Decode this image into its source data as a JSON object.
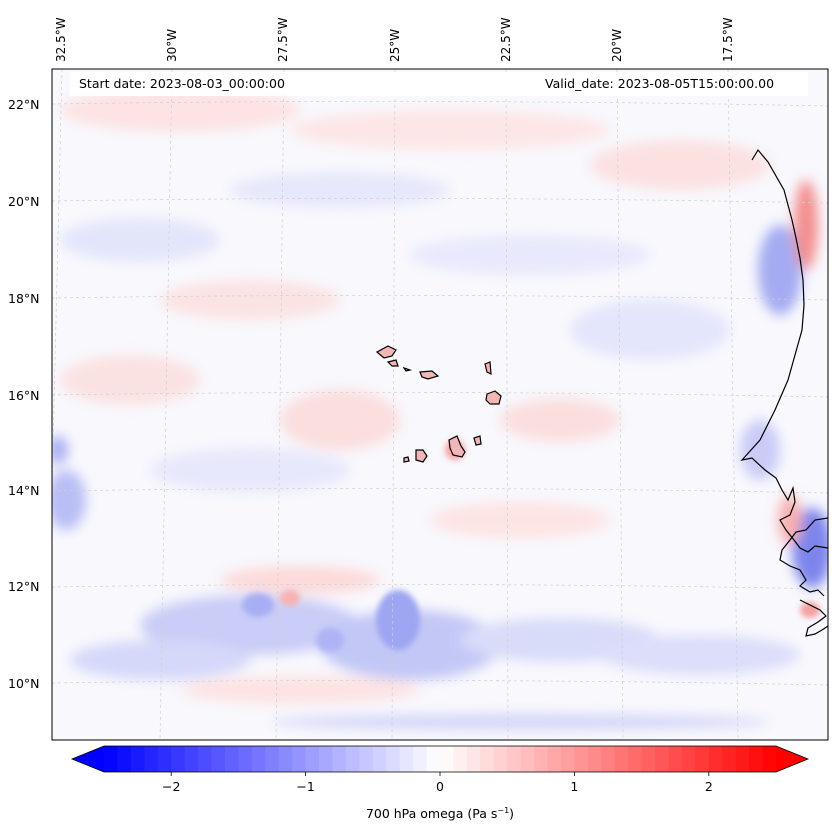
{
  "map": {
    "start_date": "Start date: 2023-08-03_00:00:00",
    "valid_date": "Valid_date: 2023-08-05T15:00:00.00",
    "longitude_labels": [
      "32.5°W",
      "30°W",
      "27.5°W",
      "25°W",
      "22.5°W",
      "20°W",
      "17.5°W"
    ],
    "latitude_labels": [
      "22°N",
      "20°N",
      "18°N",
      "16°N",
      "14°N",
      "12°N",
      "10°N"
    ],
    "colors": {
      "negative": "#0000ff",
      "positive": "#ff0000",
      "zero": "#ffffff",
      "coastline": "#000000",
      "gridline": "#c8c8c8"
    }
  },
  "colorbar": {
    "label": "700 hPa omega (Pa s",
    "label_exponent": "−1",
    "label_suffix": ")",
    "ticks": [
      "−2",
      "−1",
      "0",
      "1",
      "2"
    ],
    "range": [
      -2.7,
      2.7
    ]
  }
}
